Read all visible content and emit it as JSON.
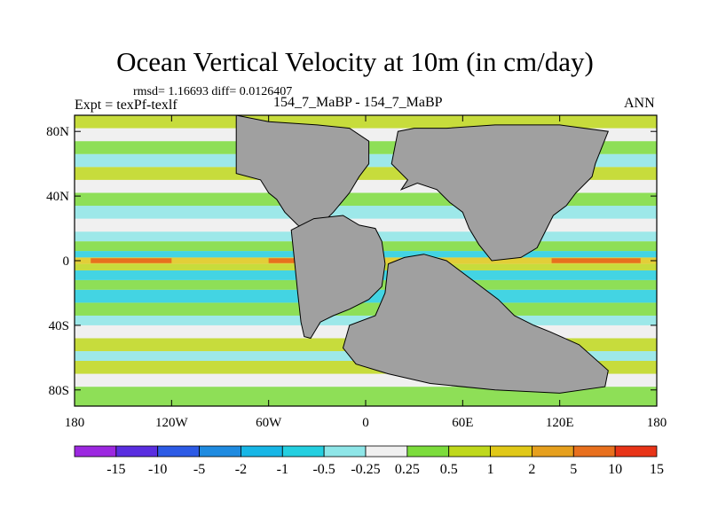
{
  "title": "Ocean Vertical Velocity at 10m (in cm/day)",
  "stats": "rmsd= 1.16693 diff= 0.0126407",
  "expt": "Expt = texPf-texlf",
  "cases": "154_7_MaBP - 154_7_MaBP",
  "season": "ANN",
  "lat_labels": [
    "80N",
    "40N",
    "0",
    "40S",
    "80S"
  ],
  "lat_values": [
    80,
    40,
    0,
    -40,
    -80
  ],
  "lon_labels": [
    "180",
    "120W",
    "60W",
    "0",
    "60E",
    "120E",
    "180"
  ],
  "lon_values": [
    -180,
    -120,
    -60,
    0,
    60,
    120,
    180
  ],
  "colorbar": {
    "labels": [
      "-15",
      "-10",
      "-5",
      "-2",
      "-1",
      "-0.5",
      "-0.25",
      "0.25",
      "0.5",
      "1",
      "2",
      "5",
      "10",
      "15"
    ],
    "colors": [
      "#9c28e0",
      "#5a2ee0",
      "#2d5be6",
      "#1f8be0",
      "#17b6e6",
      "#24cfe0",
      "#8ee6e8",
      "#f0f0f0",
      "#7cdc3c",
      "#bfd81c",
      "#e0c818",
      "#e6a01e",
      "#e8701e",
      "#e83418"
    ]
  },
  "field_colors": {
    "land": "#a0a0a0",
    "neutral": "#f0f0f0",
    "weak_pos": "#7cdc3c",
    "pos": "#bfd81c",
    "strong_pos": "#e0c818",
    "hot": "#e8701e",
    "weak_neg": "#8ee6e8",
    "neg": "#24cfe0",
    "strong_neg": "#1f8be0"
  }
}
